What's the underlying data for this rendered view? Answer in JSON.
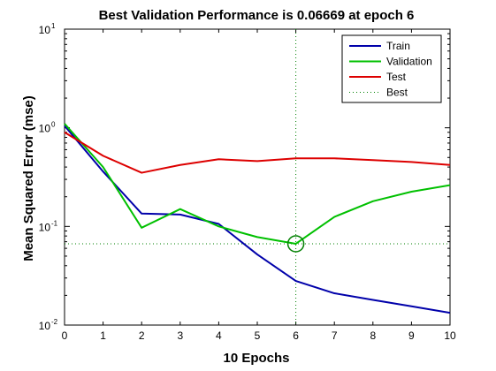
{
  "chart_data": {
    "type": "line",
    "title": "Best Validation Performance is 0.06669 at epoch 6",
    "xlabel": "10 Epochs",
    "ylabel": "Mean Squared Error  (mse)",
    "xlim": [
      0,
      10
    ],
    "ylim": [
      0.01,
      10
    ],
    "yscale": "log",
    "xticks": [
      "0",
      "1",
      "2",
      "3",
      "4",
      "5",
      "6",
      "7",
      "8",
      "9",
      "10"
    ],
    "yticks": [
      {
        "value": 0.01,
        "base": "10",
        "exp": "-2"
      },
      {
        "value": 0.1,
        "base": "10",
        "exp": "-1"
      },
      {
        "value": 1,
        "base": "10",
        "exp": "0"
      },
      {
        "value": 10,
        "base": "10",
        "exp": "1"
      }
    ],
    "x": [
      0,
      1,
      2,
      3,
      4,
      5,
      6,
      7,
      8,
      9,
      10
    ],
    "series": [
      {
        "name": "Train",
        "color": "#0000aa",
        "style": "solid",
        "values": [
          1.05,
          0.36,
          0.135,
          0.132,
          0.106,
          0.052,
          0.028,
          0.021,
          0.018,
          0.0155,
          0.0133
        ]
      },
      {
        "name": "Validation",
        "color": "#00c000",
        "style": "solid",
        "values": [
          1.1,
          0.4,
          0.097,
          0.15,
          0.1,
          0.078,
          0.0667,
          0.125,
          0.18,
          0.225,
          0.262
        ]
      },
      {
        "name": "Test",
        "color": "#dd0000",
        "style": "solid",
        "values": [
          0.9,
          0.52,
          0.35,
          0.42,
          0.48,
          0.46,
          0.49,
          0.49,
          0.47,
          0.45,
          0.42
        ]
      }
    ],
    "best": {
      "name": "Best",
      "epoch": 6,
      "value": 0.06669,
      "color": "#008000",
      "style": "dotted"
    },
    "grid": false,
    "legend_position": "top-right"
  }
}
